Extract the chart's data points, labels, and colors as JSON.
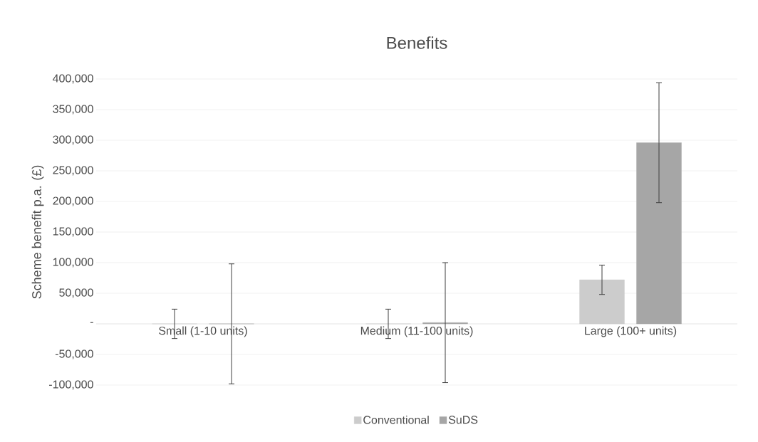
{
  "chart_data": {
    "type": "bar",
    "title": "Benefits",
    "ylabel": "Scheme benefit p.a. (£)",
    "categories": [
      "Small (1-10 units)",
      "Medium (11-100 units)",
      "Large (100+ units)"
    ],
    "series": [
      {
        "name": "Conventional",
        "color": "#cccccc",
        "values": [
          0,
          0,
          72000
        ],
        "errors": [
          24000,
          24000,
          24000
        ]
      },
      {
        "name": "SuDS",
        "color": "#a6a6a6",
        "values": [
          0,
          2000,
          296000
        ],
        "errors": [
          98000,
          98000,
          98000
        ]
      }
    ],
    "ylim": [
      -100000,
      400000
    ],
    "yticks": [
      {
        "value": -100000,
        "label": "-100,000"
      },
      {
        "value": -50000,
        "label": "-50,000"
      },
      {
        "value": 0,
        "label": "-"
      },
      {
        "value": 50000,
        "label": "50,000"
      },
      {
        "value": 100000,
        "label": "100,000"
      },
      {
        "value": 150000,
        "label": "150,000"
      },
      {
        "value": 200000,
        "label": "200,000"
      },
      {
        "value": 250000,
        "label": "250,000"
      },
      {
        "value": 300000,
        "label": "300,000"
      },
      {
        "value": 350000,
        "label": "350,000"
      },
      {
        "value": 400000,
        "label": "400,000"
      }
    ],
    "grid": "y",
    "legend": "bottom"
  }
}
